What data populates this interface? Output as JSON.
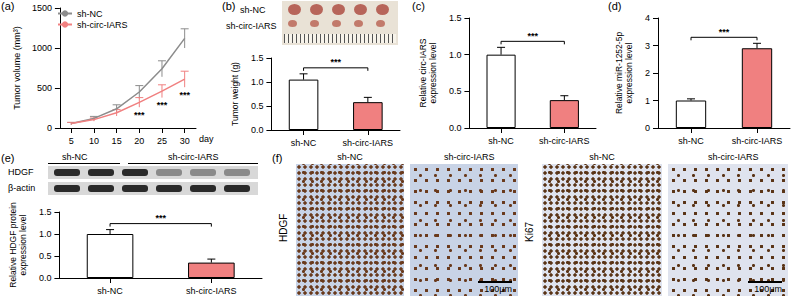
{
  "chart_data": [
    {
      "panel_label": "(a)",
      "type": "line",
      "x": [
        5,
        10,
        15,
        20,
        25,
        30
      ],
      "xlim": [
        2.5,
        32.5
      ],
      "xticks": [
        5,
        10,
        15,
        20,
        25,
        30
      ],
      "x_label": "day",
      "y_label": "Tumor volume (mm³)",
      "ylim": [
        0,
        1500
      ],
      "yticks": [
        0,
        500,
        1000,
        1500
      ],
      "grid": false,
      "legend": "upper left",
      "marker": "none",
      "series": [
        {
          "name": "sh-NC",
          "color": "#8c8c8c",
          "values": [
            55,
            120,
            240,
            450,
            740,
            1120
          ],
          "errors": [
            15,
            25,
            50,
            80,
            100,
            120
          ]
        },
        {
          "name": "sh-circ-IARS",
          "color": "#f08080",
          "values": [
            55,
            105,
            190,
            320,
            460,
            610
          ],
          "errors": [
            15,
            20,
            40,
            60,
            80,
            100
          ]
        }
      ],
      "annotations": [
        {
          "x": 20,
          "text": "***"
        },
        {
          "x": 25,
          "text": "***"
        },
        {
          "x": 30,
          "text": "***"
        }
      ]
    },
    {
      "panel_label": "(b)",
      "type": "bar",
      "categories": [
        "sh-NC",
        "sh-circ-IARS"
      ],
      "values": [
        1.05,
        0.58
      ],
      "errors": [
        0.12,
        0.1
      ],
      "colors": [
        "#ffffff",
        "#f08080"
      ],
      "y_label": "Tumor weight (g)",
      "ylim": [
        0,
        1.5
      ],
      "yticks": [
        {
          "value": 0,
          "label": "0.0"
        },
        0.5,
        {
          "value": 1,
          "label": "1.0"
        },
        1.5
      ],
      "grid": false,
      "significance": "***"
    },
    {
      "panel_label": "(c)",
      "type": "bar",
      "categories": [
        "sh-NC",
        "sh-circ-IARS"
      ],
      "values": [
        1.0,
        0.38
      ],
      "errors": [
        0.1,
        0.06
      ],
      "colors": [
        "#ffffff",
        "#f08080"
      ],
      "y_label": "Relative circ-IARS\nexpression level",
      "ylim": [
        0,
        1.5
      ],
      "yticks": [
        {
          "value": 0,
          "label": "0.0"
        },
        0.5,
        {
          "value": 1,
          "label": "1.0"
        },
        1.5
      ],
      "grid": false,
      "significance": "***"
    },
    {
      "panel_label": "(d)",
      "type": "bar",
      "categories": [
        "sh-NC",
        "sh-circ-IARS"
      ],
      "values": [
        1.0,
        2.9
      ],
      "errors": [
        0.06,
        0.18
      ],
      "colors": [
        "#ffffff",
        "#f08080"
      ],
      "y_label": "Relative miR-1252-5p\nexpression level",
      "ylim": [
        0,
        4
      ],
      "yticks": [
        0,
        1,
        2,
        3,
        4
      ],
      "grid": false,
      "significance": "***"
    },
    {
      "panel_label": "(e)",
      "type": "bar",
      "categories": [
        "sh-NC",
        "sh-circ-IARS"
      ],
      "values": [
        1.0,
        0.35
      ],
      "errors": [
        0.1,
        0.08
      ],
      "colors": [
        "#ffffff",
        "#f08080"
      ],
      "y_label": "Relative HDGF protein\nexpression level",
      "ylim": [
        0,
        1.5
      ],
      "yticks": [
        {
          "value": 0,
          "label": "0.0"
        },
        0.5,
        {
          "value": 1,
          "label": "1.0"
        },
        1.5
      ],
      "grid": false,
      "significance": "***"
    }
  ],
  "image_panels": {
    "tumor_photo": {
      "rows": [
        "sh-NC",
        "sh-circ-IARS"
      ]
    },
    "western_blot": {
      "groups": [
        "sh-NC",
        "sh-circ-IARS"
      ],
      "bands": [
        "HDGF",
        "β-actin"
      ]
    },
    "ihc": {
      "panel_label": "(f)",
      "stains": [
        {
          "name": "HDGF",
          "columns": [
            "sh-NC",
            "sh-circ-IARS"
          ],
          "scale": "100μm"
        },
        {
          "name": "Ki67",
          "columns": [
            "sh-NC",
            "sh-circ-IARS"
          ],
          "scale": "100μm"
        }
      ]
    }
  }
}
